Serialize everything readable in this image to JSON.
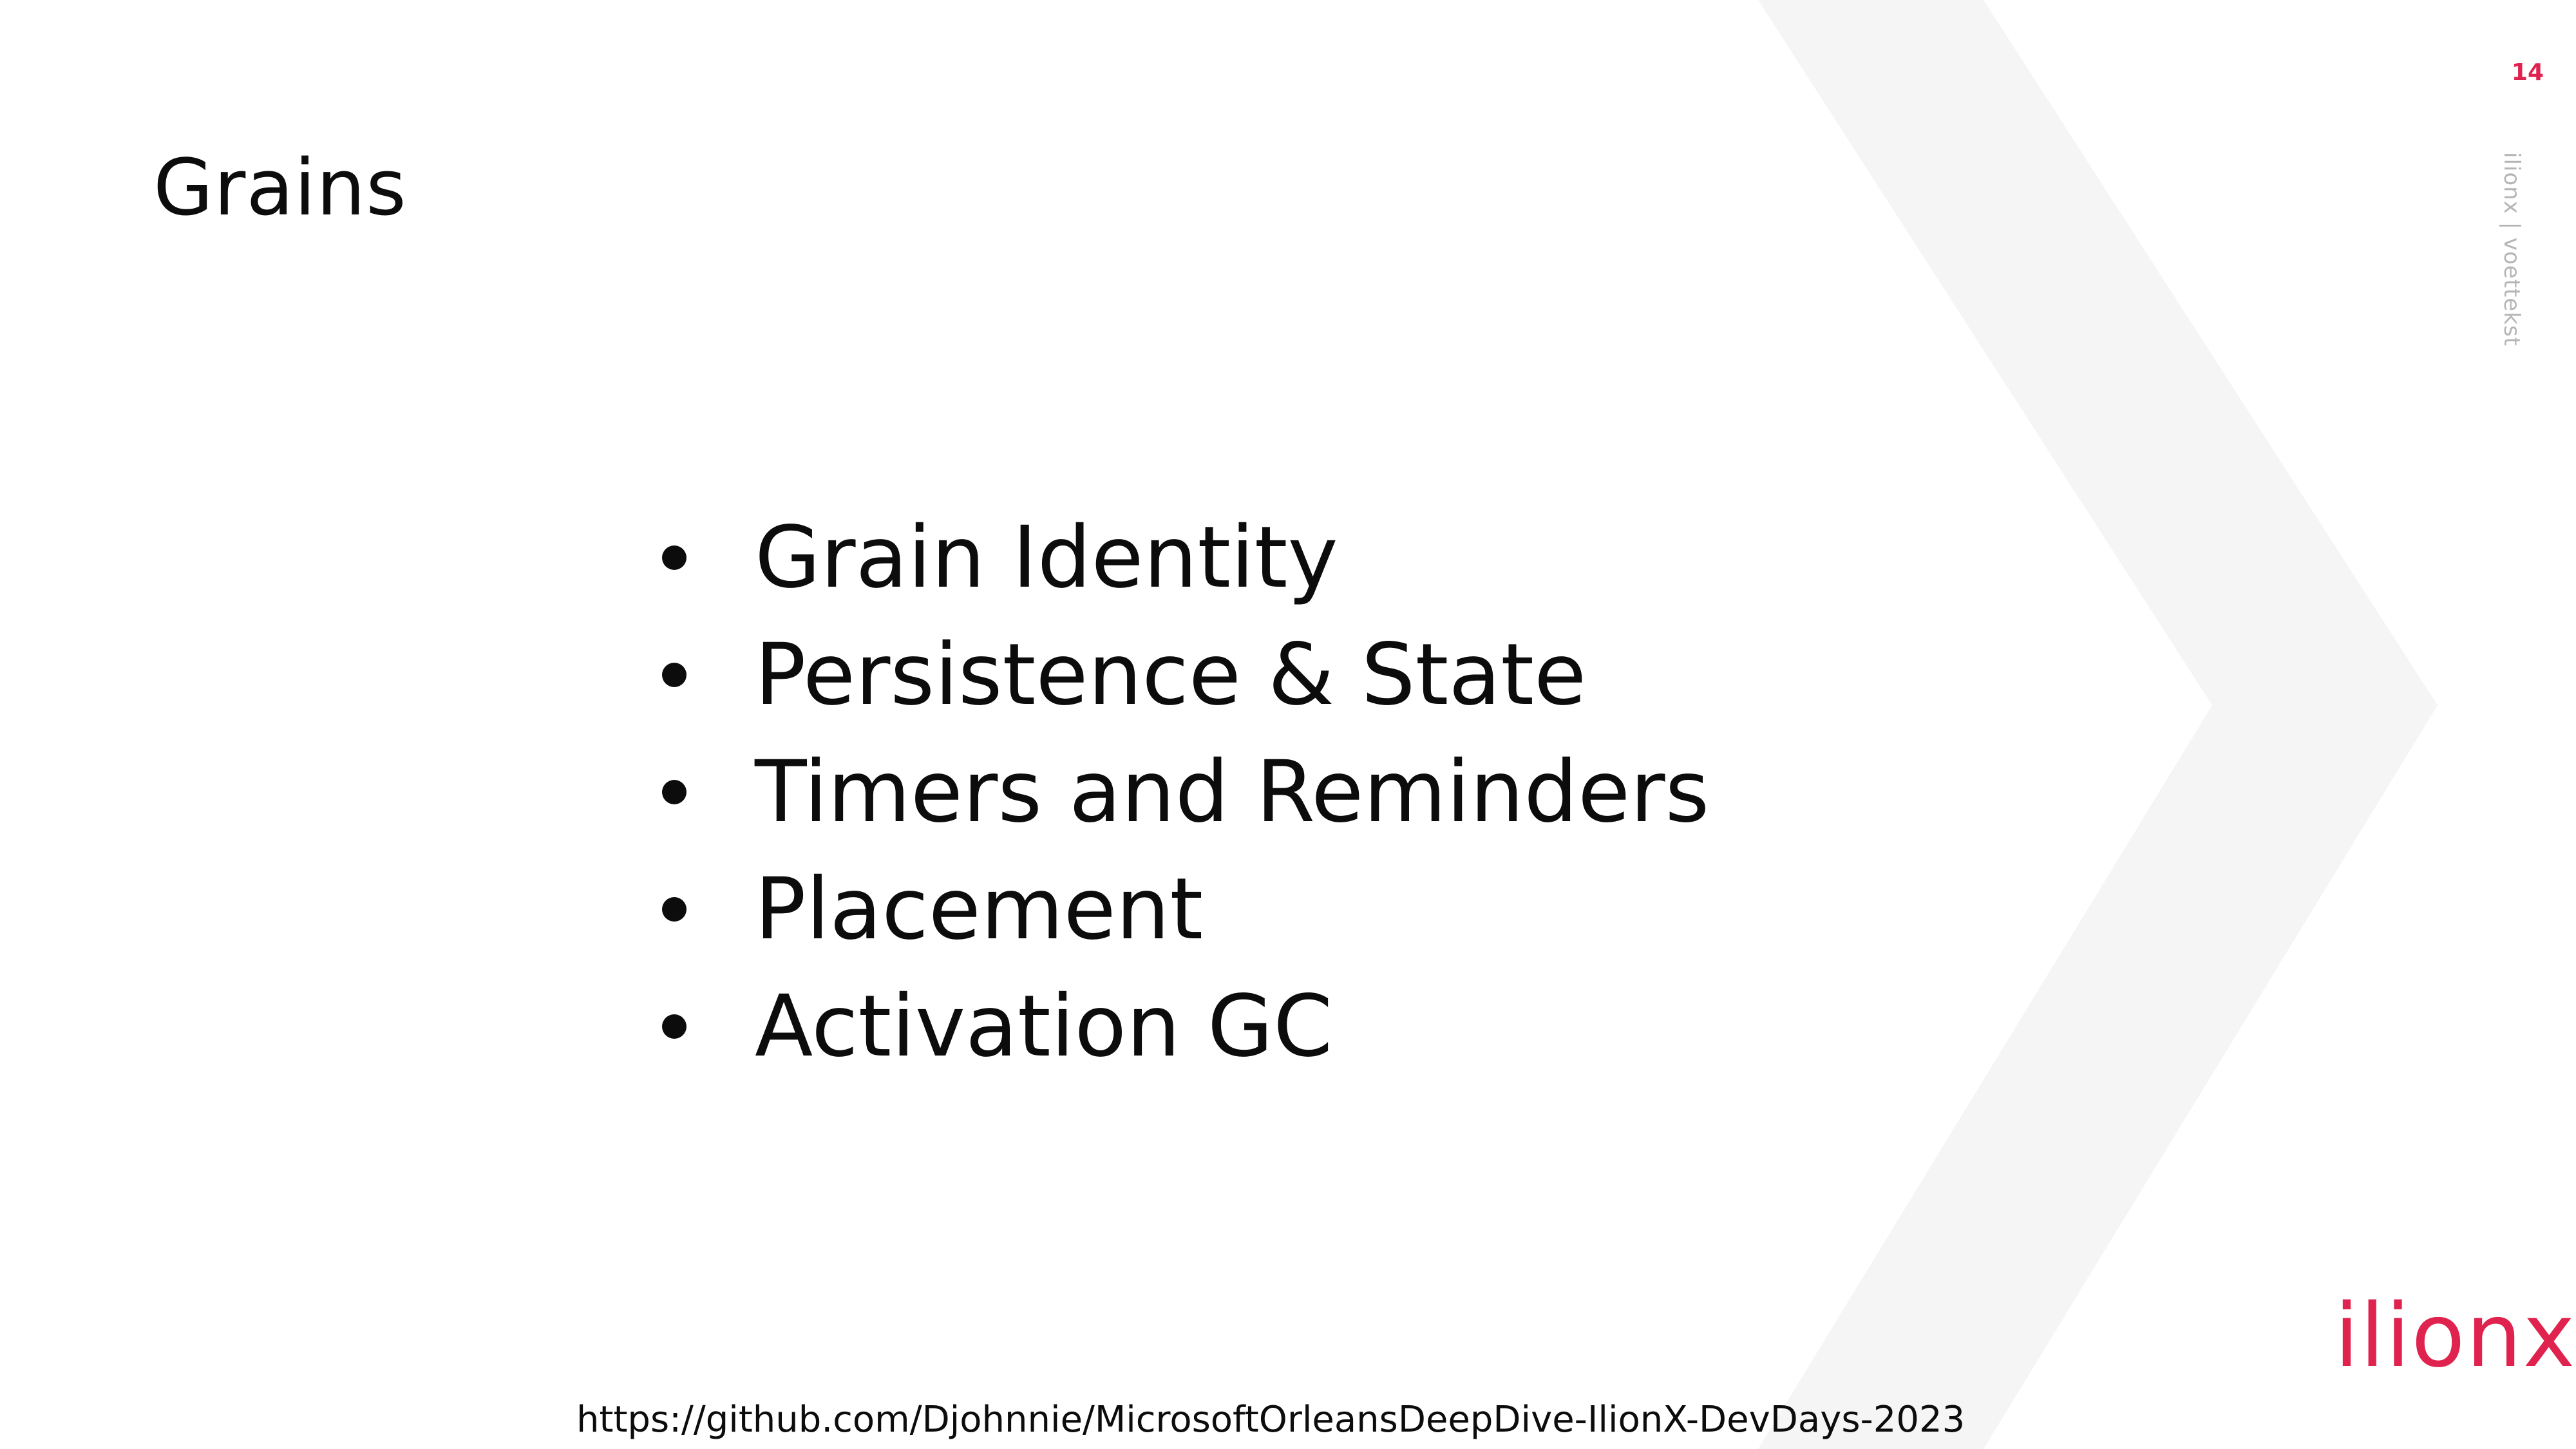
{
  "slide": {
    "title": "Grains",
    "page_number": "14",
    "footer_vertical": "ilionx | voettekst",
    "bullets": [
      "Grain Identity",
      "Persistence & State",
      "Timers and Reminders",
      "Placement",
      "Activation GC"
    ],
    "logo_text": "ilionx",
    "url": "https://github.com/Djohnnie/MicrosoftOrleansDeepDive-IlionX-DevDays-2023"
  },
  "colors": {
    "accent": "#e0234e",
    "text": "#0c0c0c",
    "chevron": "#f5f5f5",
    "footer_text": "#b5b5b5"
  }
}
